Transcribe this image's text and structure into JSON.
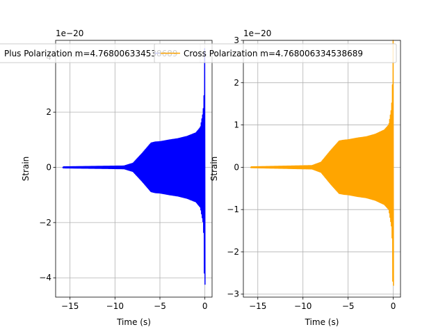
{
  "chart_data": [
    {
      "type": "line",
      "title": "",
      "xlabel": "Time (s)",
      "ylabel": "Strain",
      "offset_text": "1e−20",
      "xlim": [
        -16.6,
        0.8
      ],
      "ylim": [
        -4.7,
        4.6
      ],
      "xticks": [
        -15,
        -10,
        -5,
        0
      ],
      "xtick_labels": [
        "−15",
        "−10",
        "−5",
        "0"
      ],
      "yticks": [
        -4,
        -2,
        0,
        2,
        4
      ],
      "ytick_labels": [
        "−4",
        "−2",
        "0",
        "2",
        "4"
      ],
      "grid": true,
      "legend_position": "upper-center",
      "series": [
        {
          "name": "Plus Polarization m=4.768006334538689",
          "color": "#0000ff",
          "t_start": -15.8,
          "t_end": 0.05,
          "envelope_t": [
            -15.8,
            -9.0,
            -8.0,
            -7.0,
            -6.0,
            -5.5,
            -5.0,
            -4.0,
            -3.0,
            -2.0,
            -1.0,
            -0.5,
            -0.2,
            -0.1,
            -0.05
          ],
          "envelope_amp": [
            0.02,
            0.05,
            0.15,
            0.5,
            0.88,
            0.92,
            0.93,
            0.99,
            1.04,
            1.12,
            1.25,
            1.45,
            2.0,
            2.6,
            4.3
          ],
          "envelope_amp_neg": [
            0.02,
            0.05,
            0.15,
            0.5,
            0.88,
            0.92,
            0.93,
            0.99,
            1.04,
            1.12,
            1.25,
            1.45,
            2.0,
            2.6,
            4.25
          ]
        }
      ]
    },
    {
      "type": "line",
      "title": "",
      "xlabel": "Time (s)",
      "ylabel": "Strain",
      "offset_text": "1e−20",
      "xlim": [
        -16.6,
        0.8
      ],
      "ylim": [
        -3.07,
        3.0
      ],
      "xticks": [
        -15,
        -10,
        -5,
        0
      ],
      "xtick_labels": [
        "−15",
        "−10",
        "−5",
        "0"
      ],
      "yticks": [
        -3,
        -2,
        -1,
        0,
        1,
        2,
        3
      ],
      "ytick_labels": [
        "−3",
        "−2",
        "−1",
        "0",
        "1",
        "2",
        "3"
      ],
      "grid": true,
      "legend_position": "upper-center",
      "series": [
        {
          "name": "Cross Polarization m=4.768006334538689",
          "color": "#ffa500",
          "t_start": -15.8,
          "t_end": 0.05,
          "envelope_t": [
            -15.8,
            -9.0,
            -8.0,
            -7.0,
            -6.0,
            -5.5,
            -5.0,
            -4.0,
            -3.0,
            -2.0,
            -1.0,
            -0.5,
            -0.2,
            -0.1,
            -0.05
          ],
          "envelope_amp": [
            0.01,
            0.04,
            0.12,
            0.38,
            0.62,
            0.64,
            0.65,
            0.69,
            0.72,
            0.78,
            0.88,
            1.0,
            1.4,
            1.8,
            3.0
          ],
          "envelope_amp_neg": [
            0.01,
            0.04,
            0.12,
            0.38,
            0.62,
            0.64,
            0.65,
            0.69,
            0.72,
            0.78,
            0.88,
            1.0,
            1.4,
            1.8,
            2.8
          ]
        }
      ]
    }
  ]
}
